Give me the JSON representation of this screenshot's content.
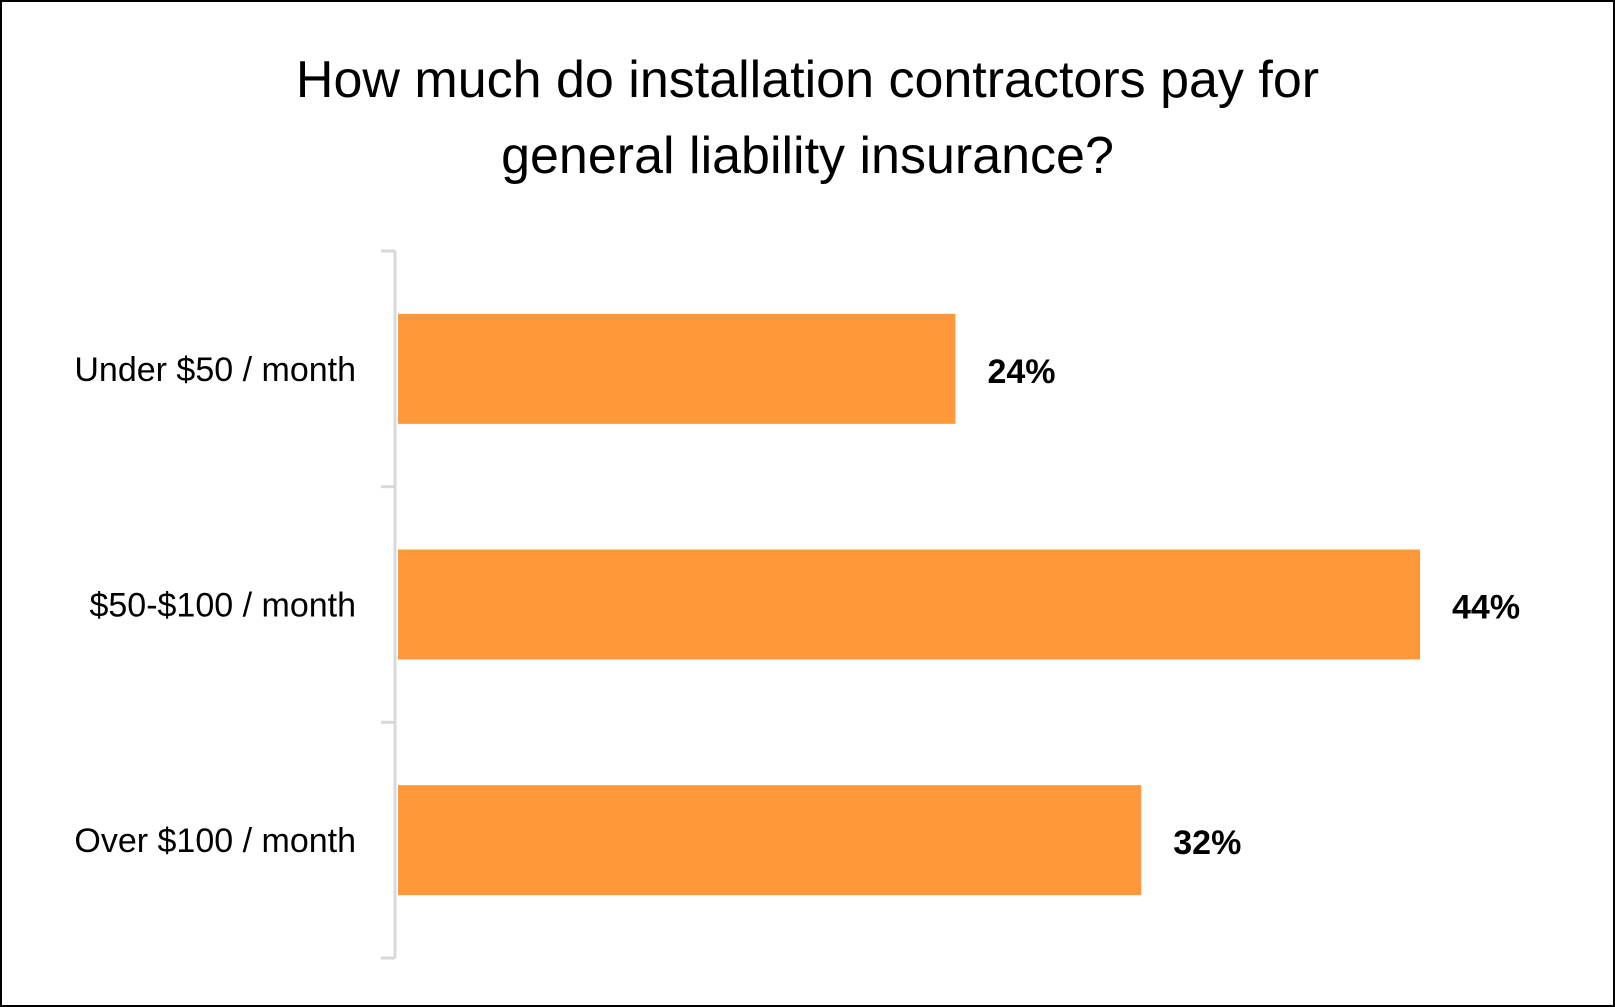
{
  "chart_data": {
    "type": "bar",
    "orientation": "horizontal",
    "title": "How much do installation contractors pay for general liability insurance?",
    "title_lines": [
      "How much do installation contractors pay for",
      "general liability insurance?"
    ],
    "categories": [
      "Under $50 / month",
      "$50-$100 / month",
      "Over $100 / month"
    ],
    "values": [
      24,
      44,
      32
    ],
    "data_labels": [
      "24%",
      "44%",
      "32%"
    ],
    "xlim": [
      0,
      44
    ],
    "grid": false,
    "legend": "none",
    "bar_color": "#FF983B",
    "axis_color": "#D9D9D9"
  }
}
